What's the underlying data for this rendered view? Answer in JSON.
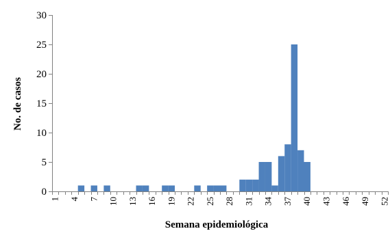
{
  "chart_data": {
    "type": "bar",
    "xlabel": "Semana epidemiológica",
    "ylabel": "No. de casos",
    "ylim": [
      0,
      30
    ],
    "y_ticks": [
      0,
      5,
      10,
      15,
      20,
      25,
      30
    ],
    "x_tick_labels": [
      "1",
      "4",
      "7",
      "10",
      "13",
      "16",
      "19",
      "22",
      "25",
      "28",
      "31",
      "34",
      "37",
      "40",
      "43",
      "46",
      "49",
      "52"
    ],
    "categories": [
      1,
      2,
      3,
      4,
      5,
      6,
      7,
      8,
      9,
      10,
      11,
      12,
      13,
      14,
      15,
      16,
      17,
      18,
      19,
      20,
      21,
      22,
      23,
      24,
      25,
      26,
      27,
      28,
      29,
      30,
      31,
      32,
      33,
      34,
      35,
      36,
      37,
      38,
      39,
      40,
      41,
      42,
      43,
      44,
      45,
      46,
      47,
      48,
      49,
      50,
      51,
      52
    ],
    "values": [
      0,
      0,
      0,
      0,
      1,
      0,
      1,
      0,
      1,
      0,
      0,
      0,
      0,
      1,
      1,
      0,
      0,
      1,
      1,
      0,
      0,
      0,
      1,
      0,
      1,
      1,
      1,
      0,
      0,
      2,
      2,
      2,
      5,
      5,
      1,
      6,
      8,
      25,
      7,
      5,
      0,
      0,
      0,
      0,
      0,
      0,
      0,
      0,
      0,
      0,
      0,
      0
    ],
    "colors": {
      "bar": "#4F81BD",
      "axis": "#808080"
    },
    "grid": false,
    "legend": "none"
  }
}
